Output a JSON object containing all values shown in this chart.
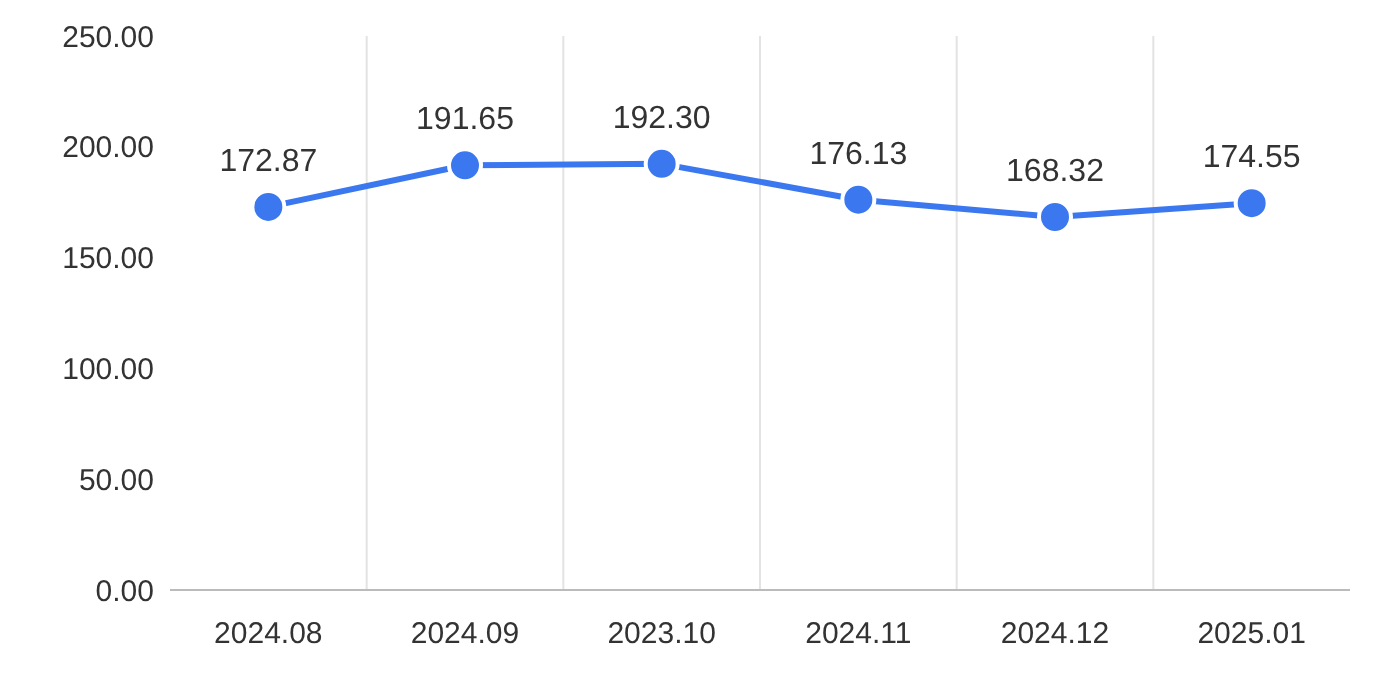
{
  "chart_data": {
    "type": "line",
    "categories": [
      "2024.08",
      "2024.09",
      "2023.10",
      "2024.11",
      "2024.12",
      "2025.01"
    ],
    "series": [
      {
        "color": "#3b78f0",
        "values": [
          172.87,
          191.65,
          192.3,
          176.13,
          168.32,
          174.55
        ],
        "value_labels": [
          "172.87",
          "191.65",
          "192.30",
          "176.13",
          "168.32",
          "174.55"
        ]
      }
    ],
    "ylim": [
      0,
      250
    ],
    "yticks": [
      {
        "value": 0,
        "label": "0.00"
      },
      {
        "value": 50,
        "label": "50.00"
      },
      {
        "value": 100,
        "label": "100.00"
      },
      {
        "value": 150,
        "label": "150.00"
      },
      {
        "value": 200,
        "label": "200.00"
      },
      {
        "value": 250,
        "label": "250.00"
      }
    ],
    "grid": "x",
    "marker": "circle"
  }
}
